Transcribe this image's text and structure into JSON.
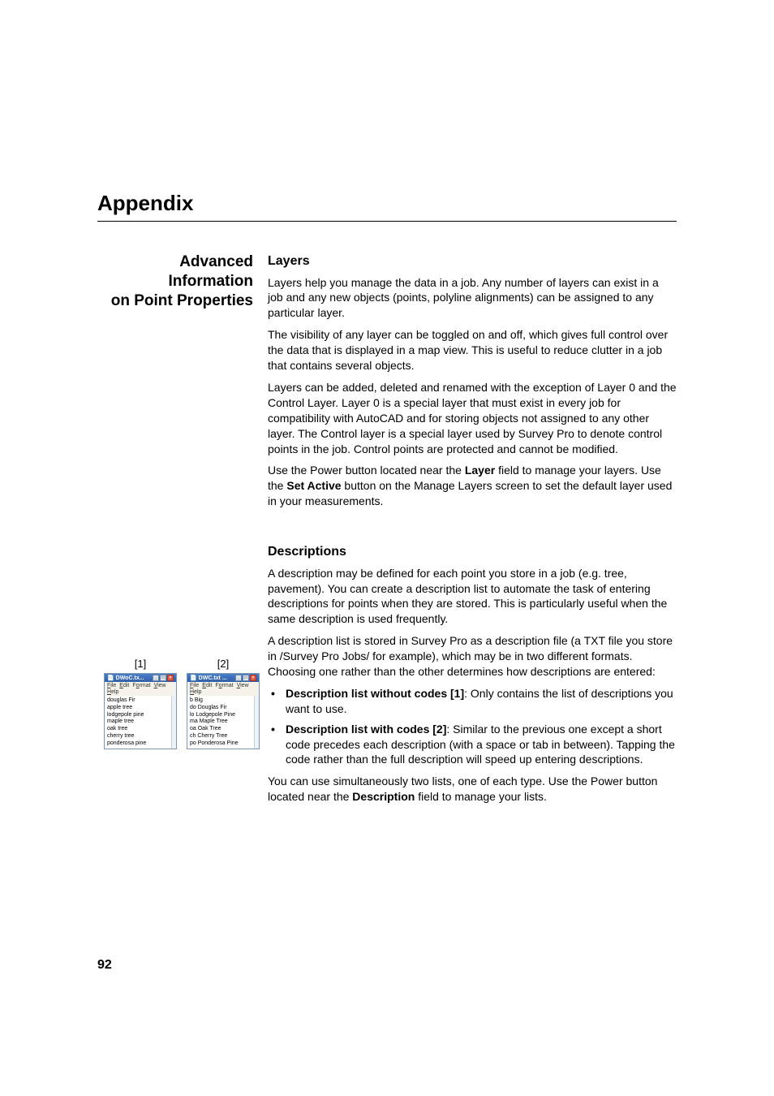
{
  "appendix_title": "Appendix",
  "section_heading_line1": "Advanced Information",
  "section_heading_line2": "on Point Properties",
  "layers": {
    "heading": "Layers",
    "p1": "Layers help you manage the data in a job. Any number of layers can exist in a job and any new objects (points, polyline alignments) can be assigned to any particular layer.",
    "p2": "The visibility of any layer can be toggled on and off, which gives full control over the data that is displayed in a map view. This is useful to reduce clutter in a job that contains several objects.",
    "p3": "Layers can be added, deleted and renamed with the exception of Layer 0 and the Control Layer. Layer 0 is a special layer that must exist in every job for compatibility with AutoCAD and for storing objects not assigned to any other layer. The Control layer is a special layer used by Survey Pro to denote control points in the job. Control points are protected and cannot be modified.",
    "p4_a": "Use the Power button located near the ",
    "p4_b": "Layer",
    "p4_c": " field to manage your layers. Use the ",
    "p4_d": "Set Active",
    "p4_e": " button on the Manage Layers screen to set the default layer used in your measurements."
  },
  "descriptions": {
    "heading": "Descriptions",
    "p1": "A description may be defined for each point you store in a job (e.g. tree, pavement). You can create a description list to automate the task of entering descriptions for points when they are stored. This is particularly useful when the same description is used frequently.",
    "p2": "A description list is stored in Survey Pro as a description file (a TXT file you store in /Survey Pro Jobs/ for example), which may be in two different formats. Choosing one rather than the other determines how descriptions are entered:",
    "b1_a": "Description list without codes [1]",
    "b1_b": ": Only contains the list of descriptions you want to use.",
    "b2_a": "Description list with codes [2]",
    "b2_b": ": Similar to the previous one except a short code precedes each description (with a space or tab in between). Tapping the code rather than the full description will speed up entering descriptions.",
    "p3_a": "You can use simultaneously two lists, one of each type. Use the Power button located near the ",
    "p3_b": "Description",
    "p3_c": " field to manage your lists."
  },
  "mockups": {
    "label1": "[1]",
    "label2": "[2]",
    "title1": "DWoC.tx...",
    "title2": "DWC.txt ...",
    "menu_file": "File",
    "menu_edit": "Edit",
    "menu_format": "Format",
    "menu_view": "View",
    "menu_help": "Help",
    "body1_l1": "douglas Fir",
    "body1_l2": "apple tree",
    "body1_l3": "lodgepole pine",
    "body1_l4": "maple tree",
    "body1_l5": "oak tree",
    "body1_l6": "cherry tree",
    "body1_l7": "ponderosa pine",
    "body2_l1": "b Big",
    "body2_l2": "do Douglas Fir",
    "body2_l3": "lo Lodgepole Pine",
    "body2_l4": "ma Maple Tree",
    "body2_l5": "oa Oak Tree",
    "body2_l6": "ch Cherry Tree",
    "body2_l7": "po Ponderosa Pine"
  },
  "page_number": "92"
}
